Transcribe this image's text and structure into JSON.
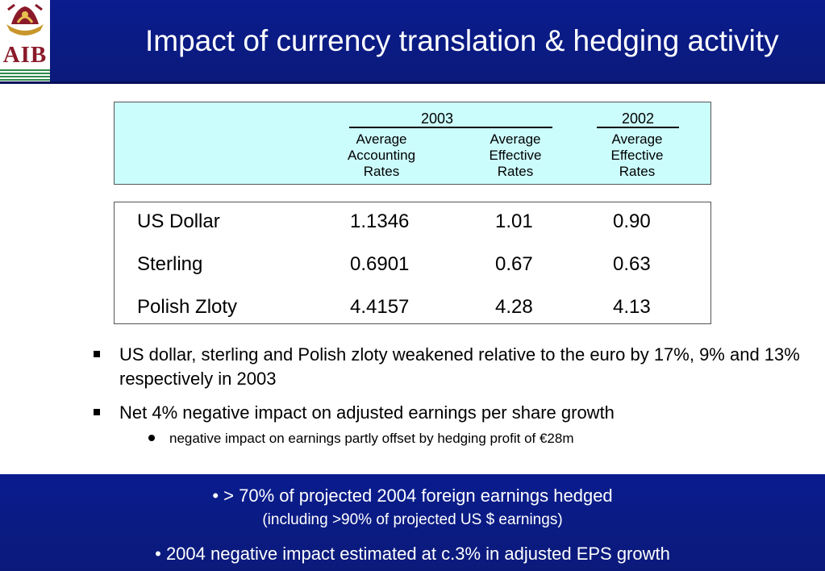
{
  "header": {
    "logo_text": "AIB",
    "title": "Impact of currency translation & hedging activity"
  },
  "table": {
    "years": [
      "2003",
      "2002"
    ],
    "column_headers": [
      [
        "Average",
        "Accounting",
        "Rates"
      ],
      [
        "Average",
        "Effective",
        "Rates"
      ],
      [
        "Average",
        "Effective",
        "Rates"
      ]
    ],
    "rows": [
      {
        "currency": "US Dollar",
        "v1": "1.1346",
        "v2": "1.01",
        "v3": "0.90"
      },
      {
        "currency": "Sterling",
        "v1": "0.6901",
        "v2": "0.67",
        "v3": "0.63"
      },
      {
        "currency": "Polish Zloty",
        "v1": "4.4157",
        "v2": "4.28",
        "v3": "4.13"
      }
    ]
  },
  "bullets": [
    "US dollar, sterling and Polish zloty weakened relative to the euro by 17%, 9% and 13% respectively in 2003",
    "Net 4% negative impact on adjusted earnings per share growth"
  ],
  "sub_bullet": "negative impact on earnings partly offset by hedging profit of €28m",
  "footer": {
    "line1": "• > 70% of projected 2004 foreign earnings hedged",
    "line2": "(including >90% of projected US $ earnings)",
    "line3": "• 2004 negative impact estimated at c.3% in adjusted EPS growth"
  },
  "colors": {
    "brand_blue": "#0a1c8e",
    "header_box": "#ccfdfd",
    "logo_red": "#8a1a2a",
    "logo_green": "#2f8a4a"
  }
}
